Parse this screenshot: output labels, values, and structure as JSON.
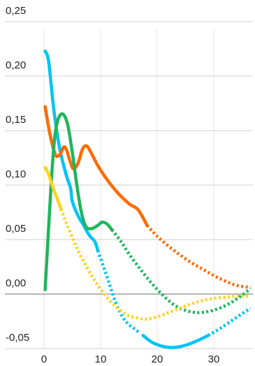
{
  "chart_data": {
    "type": "line",
    "title": "",
    "xlabel": "",
    "ylabel": "",
    "xlim": [
      -2,
      37
    ],
    "ylim": [
      -0.06,
      0.25
    ],
    "x_ticks": [
      "0",
      "10",
      "20",
      "30"
    ],
    "y_ticks": [
      "-0,05",
      "0,00",
      "0,05",
      "0,10",
      "0,15",
      "0,20",
      "0,25"
    ],
    "grid": {
      "horizontal": true,
      "vertical": true
    },
    "legend": "none",
    "series": [
      {
        "color": "#00c3f5",
        "solid": [
          [
            0.2,
            0.223
          ],
          [
            0.8,
            0.214
          ],
          [
            1.6,
            0.175
          ],
          [
            2.3,
            0.148
          ],
          [
            3,
            0.128
          ],
          [
            4,
            0.108
          ],
          [
            4.7,
            0.097
          ],
          [
            5,
            0.085
          ],
          [
            6,
            0.072
          ],
          [
            7,
            0.063
          ],
          [
            8,
            0.054
          ],
          [
            9,
            0.048
          ],
          [
            9.5,
            0.04
          ]
        ],
        "dotted": [
          [
            9.5,
            0.04
          ],
          [
            11,
            0.018
          ],
          [
            12,
            0.002
          ],
          [
            13,
            -0.012
          ],
          [
            14,
            -0.022
          ],
          [
            15,
            -0.028
          ],
          [
            16,
            -0.032
          ],
          [
            17,
            -0.036
          ]
        ],
        "solid2": [
          [
            17.5,
            -0.038
          ],
          [
            19,
            -0.044
          ],
          [
            21,
            -0.048
          ],
          [
            23,
            -0.049
          ],
          [
            25,
            -0.047
          ],
          [
            27,
            -0.043
          ],
          [
            29,
            -0.038
          ]
        ],
        "dotted2": [
          [
            29,
            -0.038
          ],
          [
            31,
            -0.032
          ],
          [
            33,
            -0.025
          ],
          [
            35,
            -0.018
          ],
          [
            36.5,
            -0.013
          ]
        ]
      },
      {
        "color": "#ff6a00",
        "solid": [
          [
            0.2,
            0.172
          ],
          [
            1,
            0.148
          ],
          [
            2,
            0.128
          ],
          [
            2.8,
            0.128
          ],
          [
            3.5,
            0.135
          ],
          [
            4,
            0.132
          ],
          [
            4.6,
            0.122
          ],
          [
            5.2,
            0.115
          ],
          [
            6,
            0.12
          ],
          [
            6.8,
            0.133
          ],
          [
            7.5,
            0.136
          ],
          [
            8.3,
            0.13
          ],
          [
            9.5,
            0.118
          ],
          [
            11,
            0.106
          ],
          [
            13,
            0.093
          ],
          [
            15,
            0.083
          ],
          [
            16.5,
            0.078
          ],
          [
            17.5,
            0.07
          ],
          [
            18.2,
            0.063
          ]
        ],
        "dotted": [
          [
            18.2,
            0.063
          ],
          [
            20,
            0.053
          ],
          [
            22,
            0.044
          ],
          [
            24,
            0.036
          ],
          [
            26,
            0.029
          ],
          [
            28,
            0.023
          ],
          [
            30,
            0.017
          ],
          [
            32,
            0.012
          ],
          [
            34,
            0.008
          ],
          [
            36.5,
            0.006
          ]
        ]
      },
      {
        "color": "#1fb55a",
        "solid": [
          [
            0.2,
            0.004
          ],
          [
            1,
            0.078
          ],
          [
            1.5,
            0.12
          ],
          [
            2,
            0.148
          ],
          [
            2.6,
            0.162
          ],
          [
            3.4,
            0.165
          ],
          [
            4.2,
            0.155
          ],
          [
            5,
            0.13
          ],
          [
            5.8,
            0.1
          ],
          [
            6.6,
            0.075
          ],
          [
            7.4,
            0.062
          ],
          [
            8.4,
            0.06
          ],
          [
            9.5,
            0.063
          ],
          [
            10.3,
            0.066
          ],
          [
            11.2,
            0.064
          ],
          [
            12,
            0.059
          ]
        ],
        "dotted": [
          [
            12,
            0.059
          ],
          [
            13.5,
            0.049
          ],
          [
            15,
            0.037
          ],
          [
            17,
            0.023
          ],
          [
            19,
            0.01
          ],
          [
            21,
            -0.001
          ],
          [
            23,
            -0.01
          ],
          [
            25,
            -0.015
          ],
          [
            27,
            -0.017
          ],
          [
            29,
            -0.016
          ],
          [
            31,
            -0.013
          ],
          [
            33,
            -0.008
          ],
          [
            35,
            -0.001
          ],
          [
            36.5,
            0.005
          ]
        ]
      },
      {
        "color": "#ffd21f",
        "solid": [
          [
            0.2,
            0.116
          ],
          [
            0.8,
            0.11
          ],
          [
            1.5,
            0.099
          ],
          [
            2.3,
            0.088
          ],
          [
            3,
            0.078
          ]
        ],
        "dotted": [
          [
            3,
            0.078
          ],
          [
            4.5,
            0.058
          ],
          [
            6,
            0.04
          ],
          [
            7.5,
            0.025
          ],
          [
            9,
            0.012
          ],
          [
            10.5,
            0.001
          ],
          [
            12,
            -0.008
          ],
          [
            13.5,
            -0.015
          ],
          [
            15,
            -0.02
          ],
          [
            16.5,
            -0.022
          ],
          [
            18,
            -0.023
          ],
          [
            20,
            -0.021
          ],
          [
            22,
            -0.017
          ],
          [
            24,
            -0.013
          ],
          [
            26,
            -0.009
          ],
          [
            28,
            -0.006
          ],
          [
            30,
            -0.004
          ],
          [
            32,
            -0.003
          ],
          [
            34,
            -0.002
          ],
          [
            36.5,
            -0.002
          ]
        ]
      }
    ]
  }
}
